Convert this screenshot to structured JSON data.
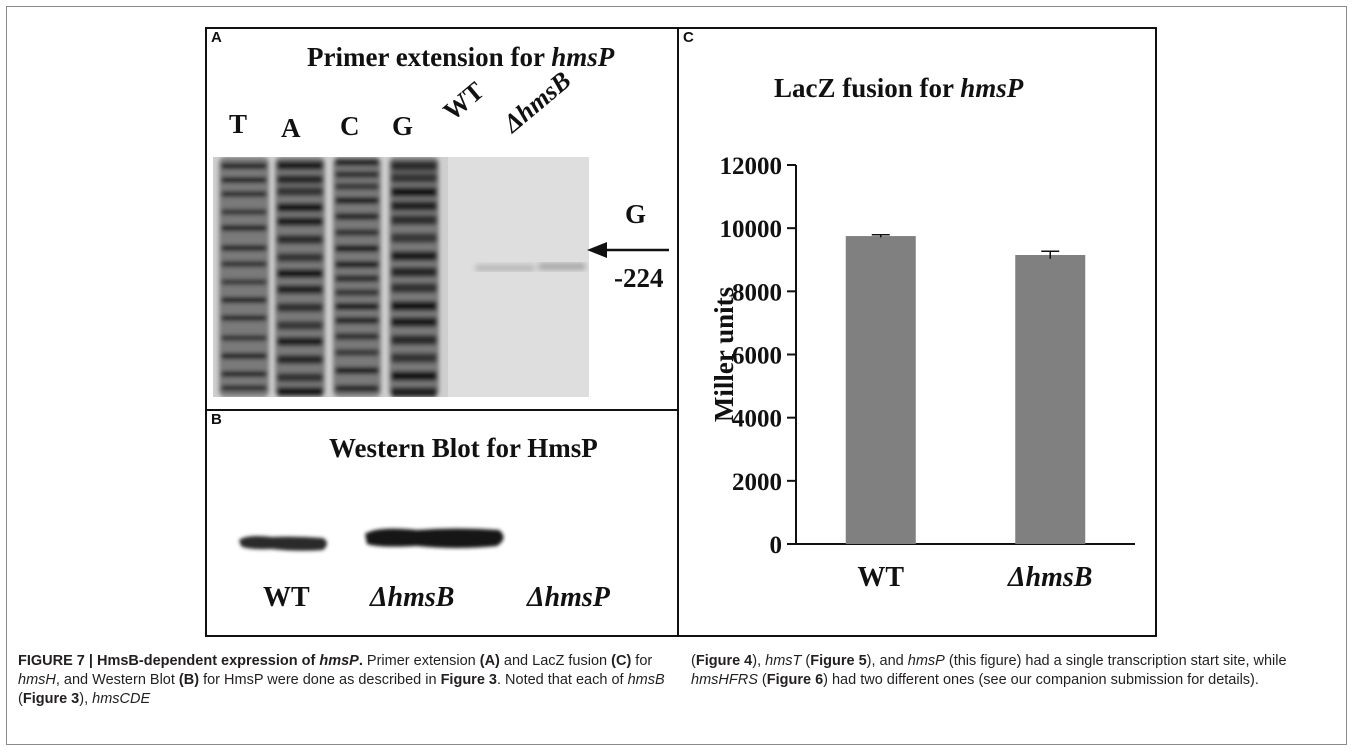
{
  "panel_a": {
    "label": "A",
    "title_prefix": "Primer extension for ",
    "title_gene": "hmsP",
    "lanes": [
      "T",
      "A",
      "C",
      "G",
      "WT",
      "ΔhmsB"
    ],
    "marker_base": "G",
    "marker_position": "-224"
  },
  "panel_b": {
    "label": "B",
    "title": "Western Blot for HmsP",
    "lanes": [
      "WT",
      "ΔhmsB",
      "ΔhmsP"
    ]
  },
  "panel_c": {
    "label": "C",
    "title_prefix": "LacZ fusion for ",
    "title_gene": "hmsP"
  },
  "chart_data": {
    "type": "bar",
    "title": "LacZ fusion for hmsP",
    "categories": [
      "WT",
      "ΔhmsB"
    ],
    "values": [
      9750,
      9150
    ],
    "errors": [
      40,
      120
    ],
    "ylabel": "Miller units",
    "xlabel": "",
    "ylim": [
      0,
      12000
    ],
    "yticks": [
      "0",
      "2000",
      "4000",
      "6000",
      "8000",
      "10000",
      "12000"
    ],
    "bar_color": "#808080",
    "grid": false,
    "legend": "none"
  },
  "caption": {
    "fig_label": "FIGURE 7 | HmsB-dependent expression of ",
    "fig_gene": "hmsP",
    "fig_end": ".",
    "t1": " Primer extension ",
    "refA": "(A)",
    "t2": " and LacZ fusion ",
    "refC": "(C)",
    "t3": " for ",
    "g1": "hmsH",
    "t4": ", and Western Blot ",
    "refB": "(B)",
    "t5": " for HmsP were done as described in ",
    "f3": "Figure 3",
    "t6": ". Noted that each of ",
    "g2": "hmsB",
    "t7": " (",
    "f3b": "Figure 3",
    "t8": "), ",
    "g3": "hmsCDE",
    "t9": "(",
    "f4": "Figure 4",
    "t10": "), ",
    "g4": "hmsT",
    "t11": " (",
    "f5": "Figure 5",
    "t12": "), and ",
    "g5": "hmsP",
    "t13": " (this figure) had a single transcription start site, while ",
    "g6": "hmsHFRS",
    "t14": " (",
    "f6": "Figure 6",
    "t15": ") had two different ones (see our companion submission for details)."
  }
}
